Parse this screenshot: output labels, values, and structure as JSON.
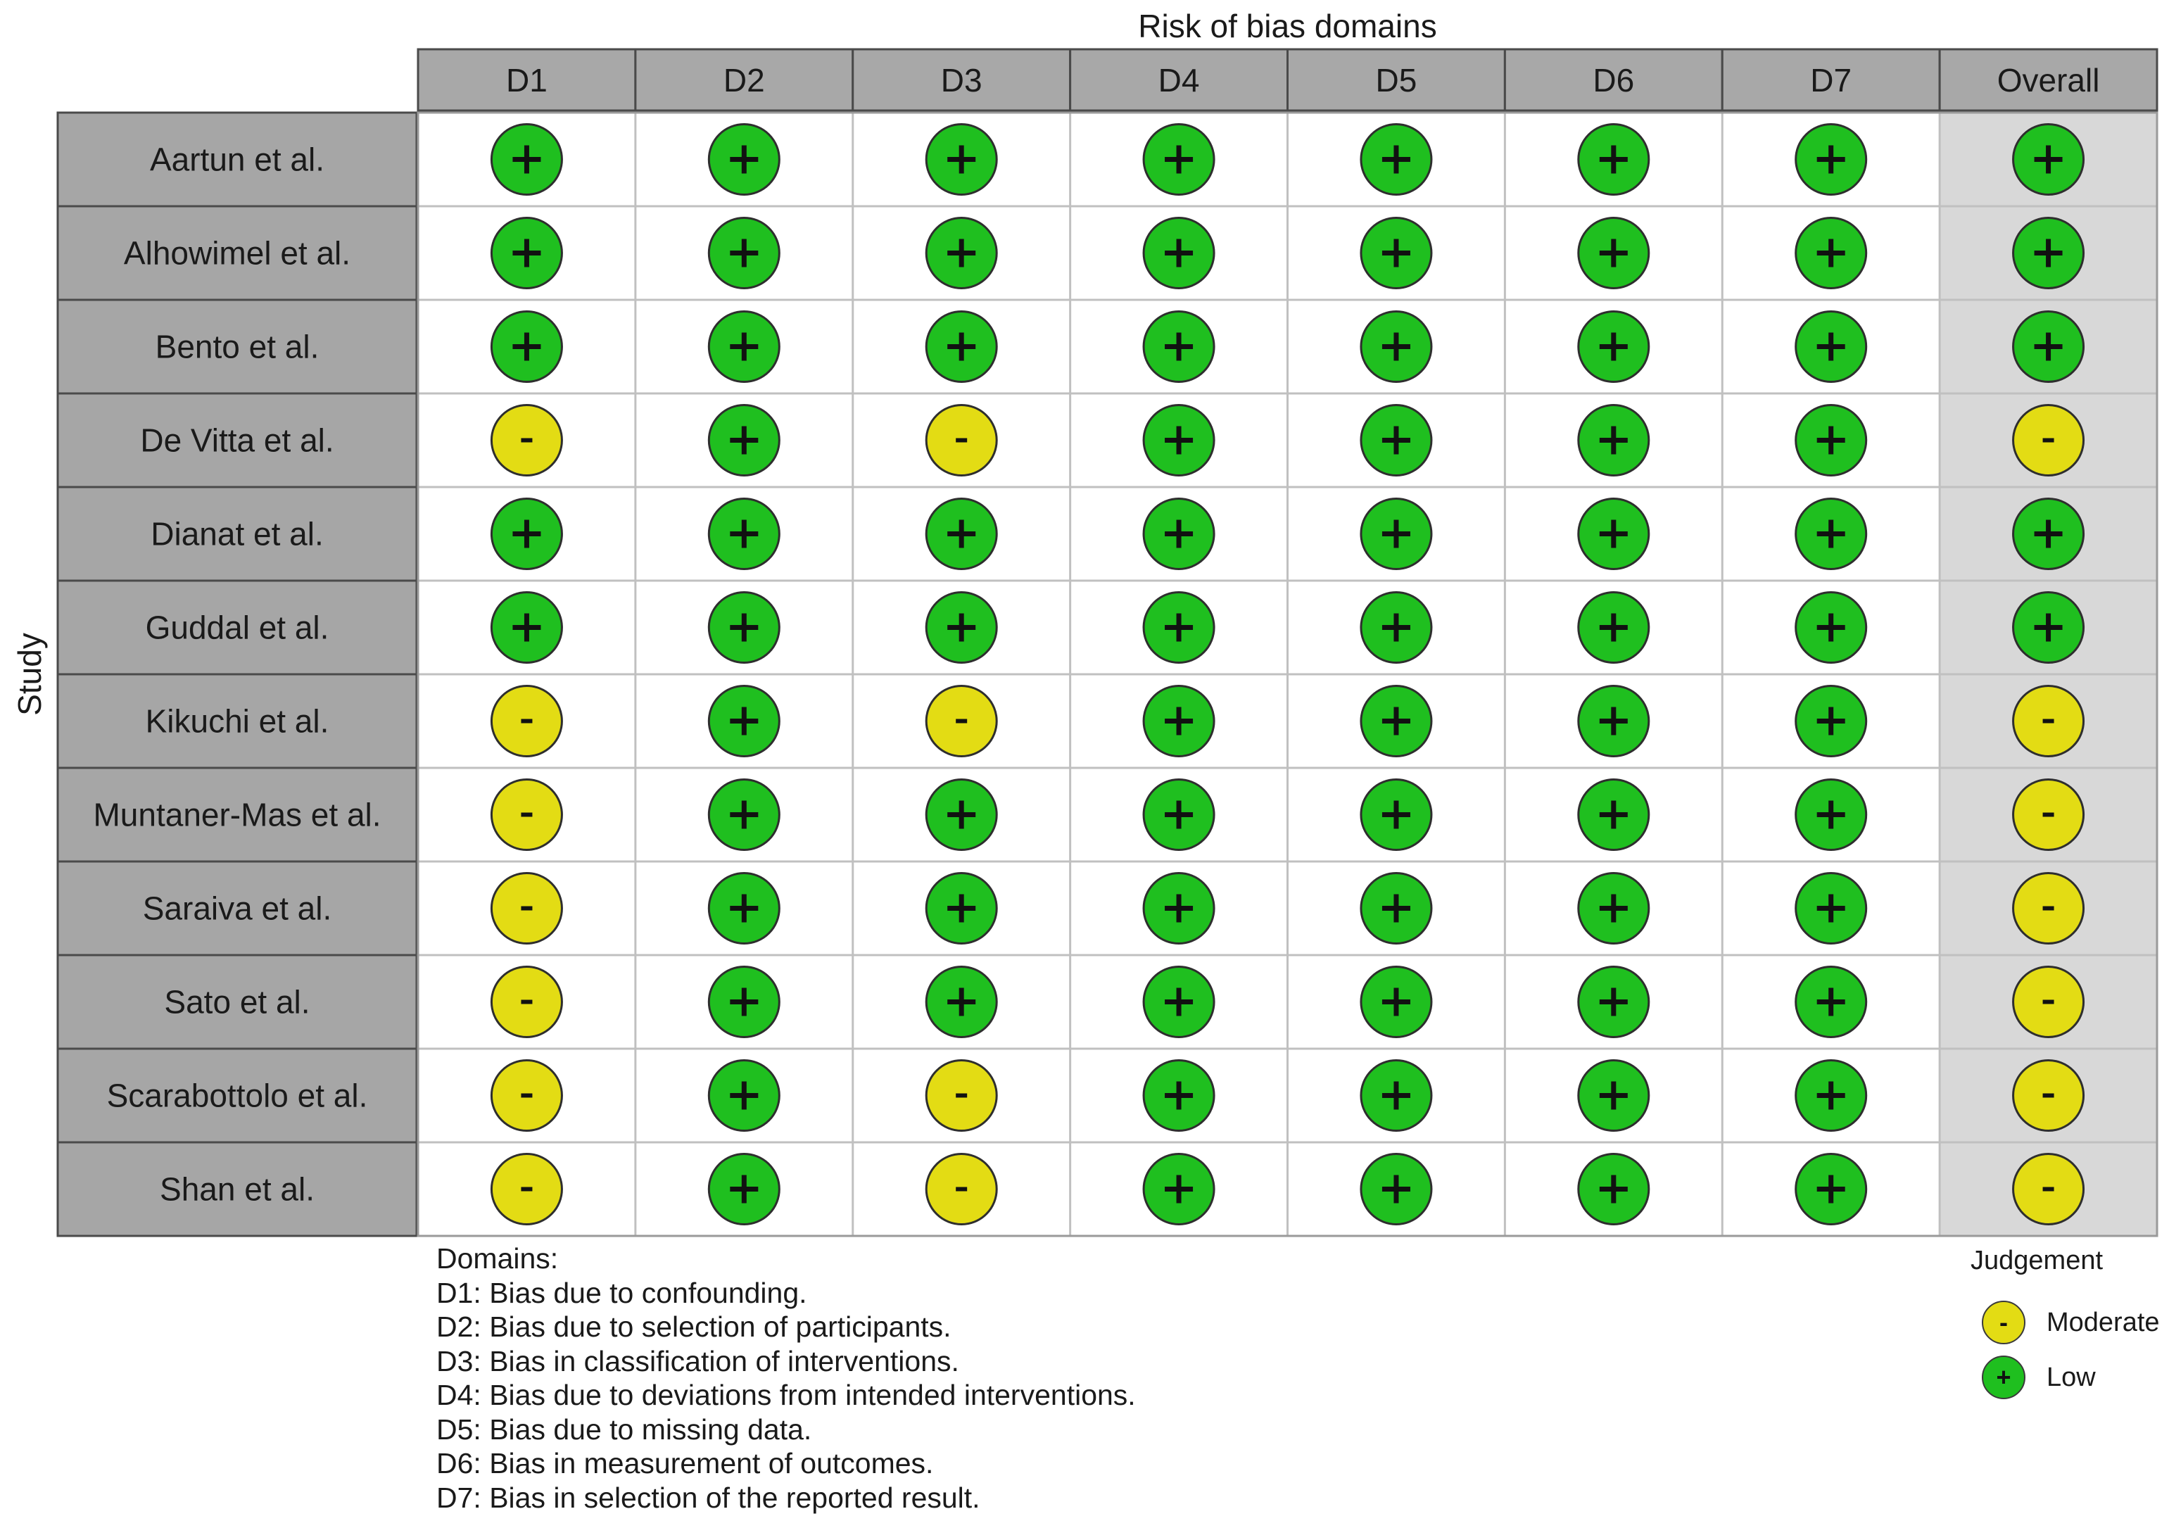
{
  "chart_data": {
    "type": "table",
    "title": "Risk of bias domains",
    "ylabel": "Study",
    "columns": [
      "D1",
      "D2",
      "D3",
      "D4",
      "D5",
      "D6",
      "D7",
      "Overall"
    ],
    "rows": [
      {
        "study": "Aartun et al.",
        "judgements": [
          "Low",
          "Low",
          "Low",
          "Low",
          "Low",
          "Low",
          "Low",
          "Low"
        ]
      },
      {
        "study": "Alhowimel et al.",
        "judgements": [
          "Low",
          "Low",
          "Low",
          "Low",
          "Low",
          "Low",
          "Low",
          "Low"
        ]
      },
      {
        "study": "Bento et al.",
        "judgements": [
          "Low",
          "Low",
          "Low",
          "Low",
          "Low",
          "Low",
          "Low",
          "Low"
        ]
      },
      {
        "study": "De Vitta et al.",
        "judgements": [
          "Moderate",
          "Low",
          "Moderate",
          "Low",
          "Low",
          "Low",
          "Low",
          "Moderate"
        ]
      },
      {
        "study": "Dianat et al.",
        "judgements": [
          "Low",
          "Low",
          "Low",
          "Low",
          "Low",
          "Low",
          "Low",
          "Low"
        ]
      },
      {
        "study": "Guddal et al.",
        "judgements": [
          "Low",
          "Low",
          "Low",
          "Low",
          "Low",
          "Low",
          "Low",
          "Low"
        ]
      },
      {
        "study": "Kikuchi et al.",
        "judgements": [
          "Moderate",
          "Low",
          "Moderate",
          "Low",
          "Low",
          "Low",
          "Low",
          "Moderate"
        ]
      },
      {
        "study": "Muntaner-Mas et al.",
        "judgements": [
          "Moderate",
          "Low",
          "Low",
          "Low",
          "Low",
          "Low",
          "Low",
          "Moderate"
        ]
      },
      {
        "study": "Saraiva et al.",
        "judgements": [
          "Moderate",
          "Low",
          "Low",
          "Low",
          "Low",
          "Low",
          "Low",
          "Moderate"
        ]
      },
      {
        "study": "Sato et al.",
        "judgements": [
          "Moderate",
          "Low",
          "Low",
          "Low",
          "Low",
          "Low",
          "Low",
          "Moderate"
        ]
      },
      {
        "study": "Scarabottolo et al.",
        "judgements": [
          "Moderate",
          "Low",
          "Moderate",
          "Low",
          "Low",
          "Low",
          "Low",
          "Moderate"
        ]
      },
      {
        "study": "Shan et al.",
        "judgements": [
          "Moderate",
          "Low",
          "Moderate",
          "Low",
          "Low",
          "Low",
          "Low",
          "Moderate"
        ]
      }
    ],
    "symbols": {
      "Low": "+",
      "Moderate": "-"
    },
    "colors": {
      "Low": "#1fbf1f",
      "Moderate": "#e3dc14",
      "header_fill": "#a8a8a8",
      "study_fill": "#a6a6a6",
      "overall_fill": "#d8d8d8",
      "grid_line": "#c0c0c0"
    },
    "domains_legend": {
      "heading": "Domains:",
      "items": [
        "D1: Bias due to confounding.",
        "D2: Bias due to selection of participants.",
        "D3: Bias in classification of interventions.",
        "D4: Bias due to deviations from intended interventions.",
        "D5: Bias due to missing data.",
        "D6: Bias in measurement of outcomes.",
        "D7: Bias in selection of the reported result."
      ]
    },
    "judgement_legend": {
      "title": "Judgement",
      "items": [
        {
          "label": "Moderate",
          "symbol": "-"
        },
        {
          "label": "Low",
          "symbol": "+"
        }
      ]
    }
  }
}
